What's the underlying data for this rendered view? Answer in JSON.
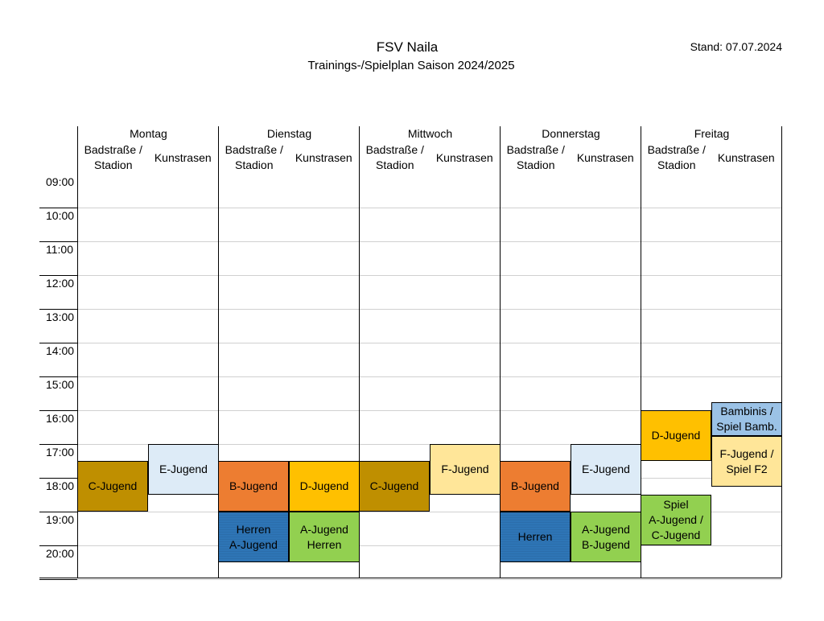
{
  "header": {
    "title": "FSV Naila",
    "subtitle": "Trainings-/Spielplan Saison 2024/2025",
    "stand": "Stand: 07.07.2024"
  },
  "days": [
    {
      "name": "Montag",
      "field_a": "Badstraße /\nStadion",
      "field_b": "Kunstrasen"
    },
    {
      "name": "Dienstag",
      "field_a": "Badstraße /\nStadion",
      "field_b": "Kunstrasen"
    },
    {
      "name": "Mittwoch",
      "field_a": "Badstraße /\nStadion",
      "field_b": "Kunstrasen"
    },
    {
      "name": "Donnerstag",
      "field_a": "Badstraße /\nStadion",
      "field_b": "Kunstrasen"
    },
    {
      "name": "Freitag",
      "field_a": "Badstraße /\nStadion",
      "field_b": "Kunstrasen"
    }
  ],
  "times": [
    "09:00",
    "10:00",
    "11:00",
    "12:00",
    "13:00",
    "14:00",
    "15:00",
    "16:00",
    "17:00",
    "18:00",
    "19:00",
    "20:00"
  ],
  "blocks": [
    {
      "label": "C-Jugend",
      "color": "#bf8f00",
      "day": 0,
      "field": "a",
      "start": 17.5,
      "end": 19.0
    },
    {
      "label": "E-Jugend",
      "color": "#ddebf7",
      "day": 0,
      "field": "b",
      "start": 17.0,
      "end": 18.5
    },
    {
      "label": "B-Jugend",
      "color": "#ed7d31",
      "day": 1,
      "field": "a",
      "start": 17.5,
      "end": 19.0
    },
    {
      "label": "D-Jugend",
      "color": "#ffc000",
      "day": 1,
      "field": "b",
      "start": 17.5,
      "end": 19.0
    },
    {
      "label": "Herren\nA-Jugend",
      "color": "#2e75b6",
      "day": 1,
      "field": "a",
      "start": 19.0,
      "end": 20.5,
      "striped": true
    },
    {
      "label": "A-Jugend\nHerren",
      "color": "#92d050",
      "day": 1,
      "field": "b",
      "start": 19.0,
      "end": 20.5
    },
    {
      "label": "C-Jugend",
      "color": "#bf8f00",
      "day": 2,
      "field": "a",
      "start": 17.5,
      "end": 19.0
    },
    {
      "label": "F-Jugend",
      "color": "#ffe699",
      "day": 2,
      "field": "b",
      "start": 17.0,
      "end": 18.5
    },
    {
      "label": "B-Jugend",
      "color": "#ed7d31",
      "day": 3,
      "field": "a",
      "start": 17.5,
      "end": 19.0
    },
    {
      "label": "E-Jugend",
      "color": "#ddebf7",
      "day": 3,
      "field": "b",
      "start": 17.0,
      "end": 18.5
    },
    {
      "label": "Herren",
      "color": "#2e75b6",
      "day": 3,
      "field": "a",
      "start": 19.0,
      "end": 20.5,
      "striped": true
    },
    {
      "label": "A-Jugend\nB-Jugend",
      "color": "#92d050",
      "day": 3,
      "field": "b",
      "start": 19.0,
      "end": 20.5
    },
    {
      "label": "D-Jugend",
      "color": "#ffc000",
      "day": 4,
      "field": "a",
      "start": 16.0,
      "end": 17.5
    },
    {
      "label": "Spiel\nA-Jugend /\nC-Jugend",
      "color": "#92d050",
      "day": 4,
      "field": "a",
      "start": 18.5,
      "end": 20.0
    },
    {
      "label": "Bambinis /\nSpiel Bamb.",
      "color": "#9bc2e6",
      "day": 4,
      "field": "b",
      "start": 15.75,
      "end": 16.75
    },
    {
      "label": "F-Jugend /\nSpiel F2",
      "color": "#ffe699",
      "day": 4,
      "field": "b",
      "start": 16.75,
      "end": 18.25
    }
  ]
}
